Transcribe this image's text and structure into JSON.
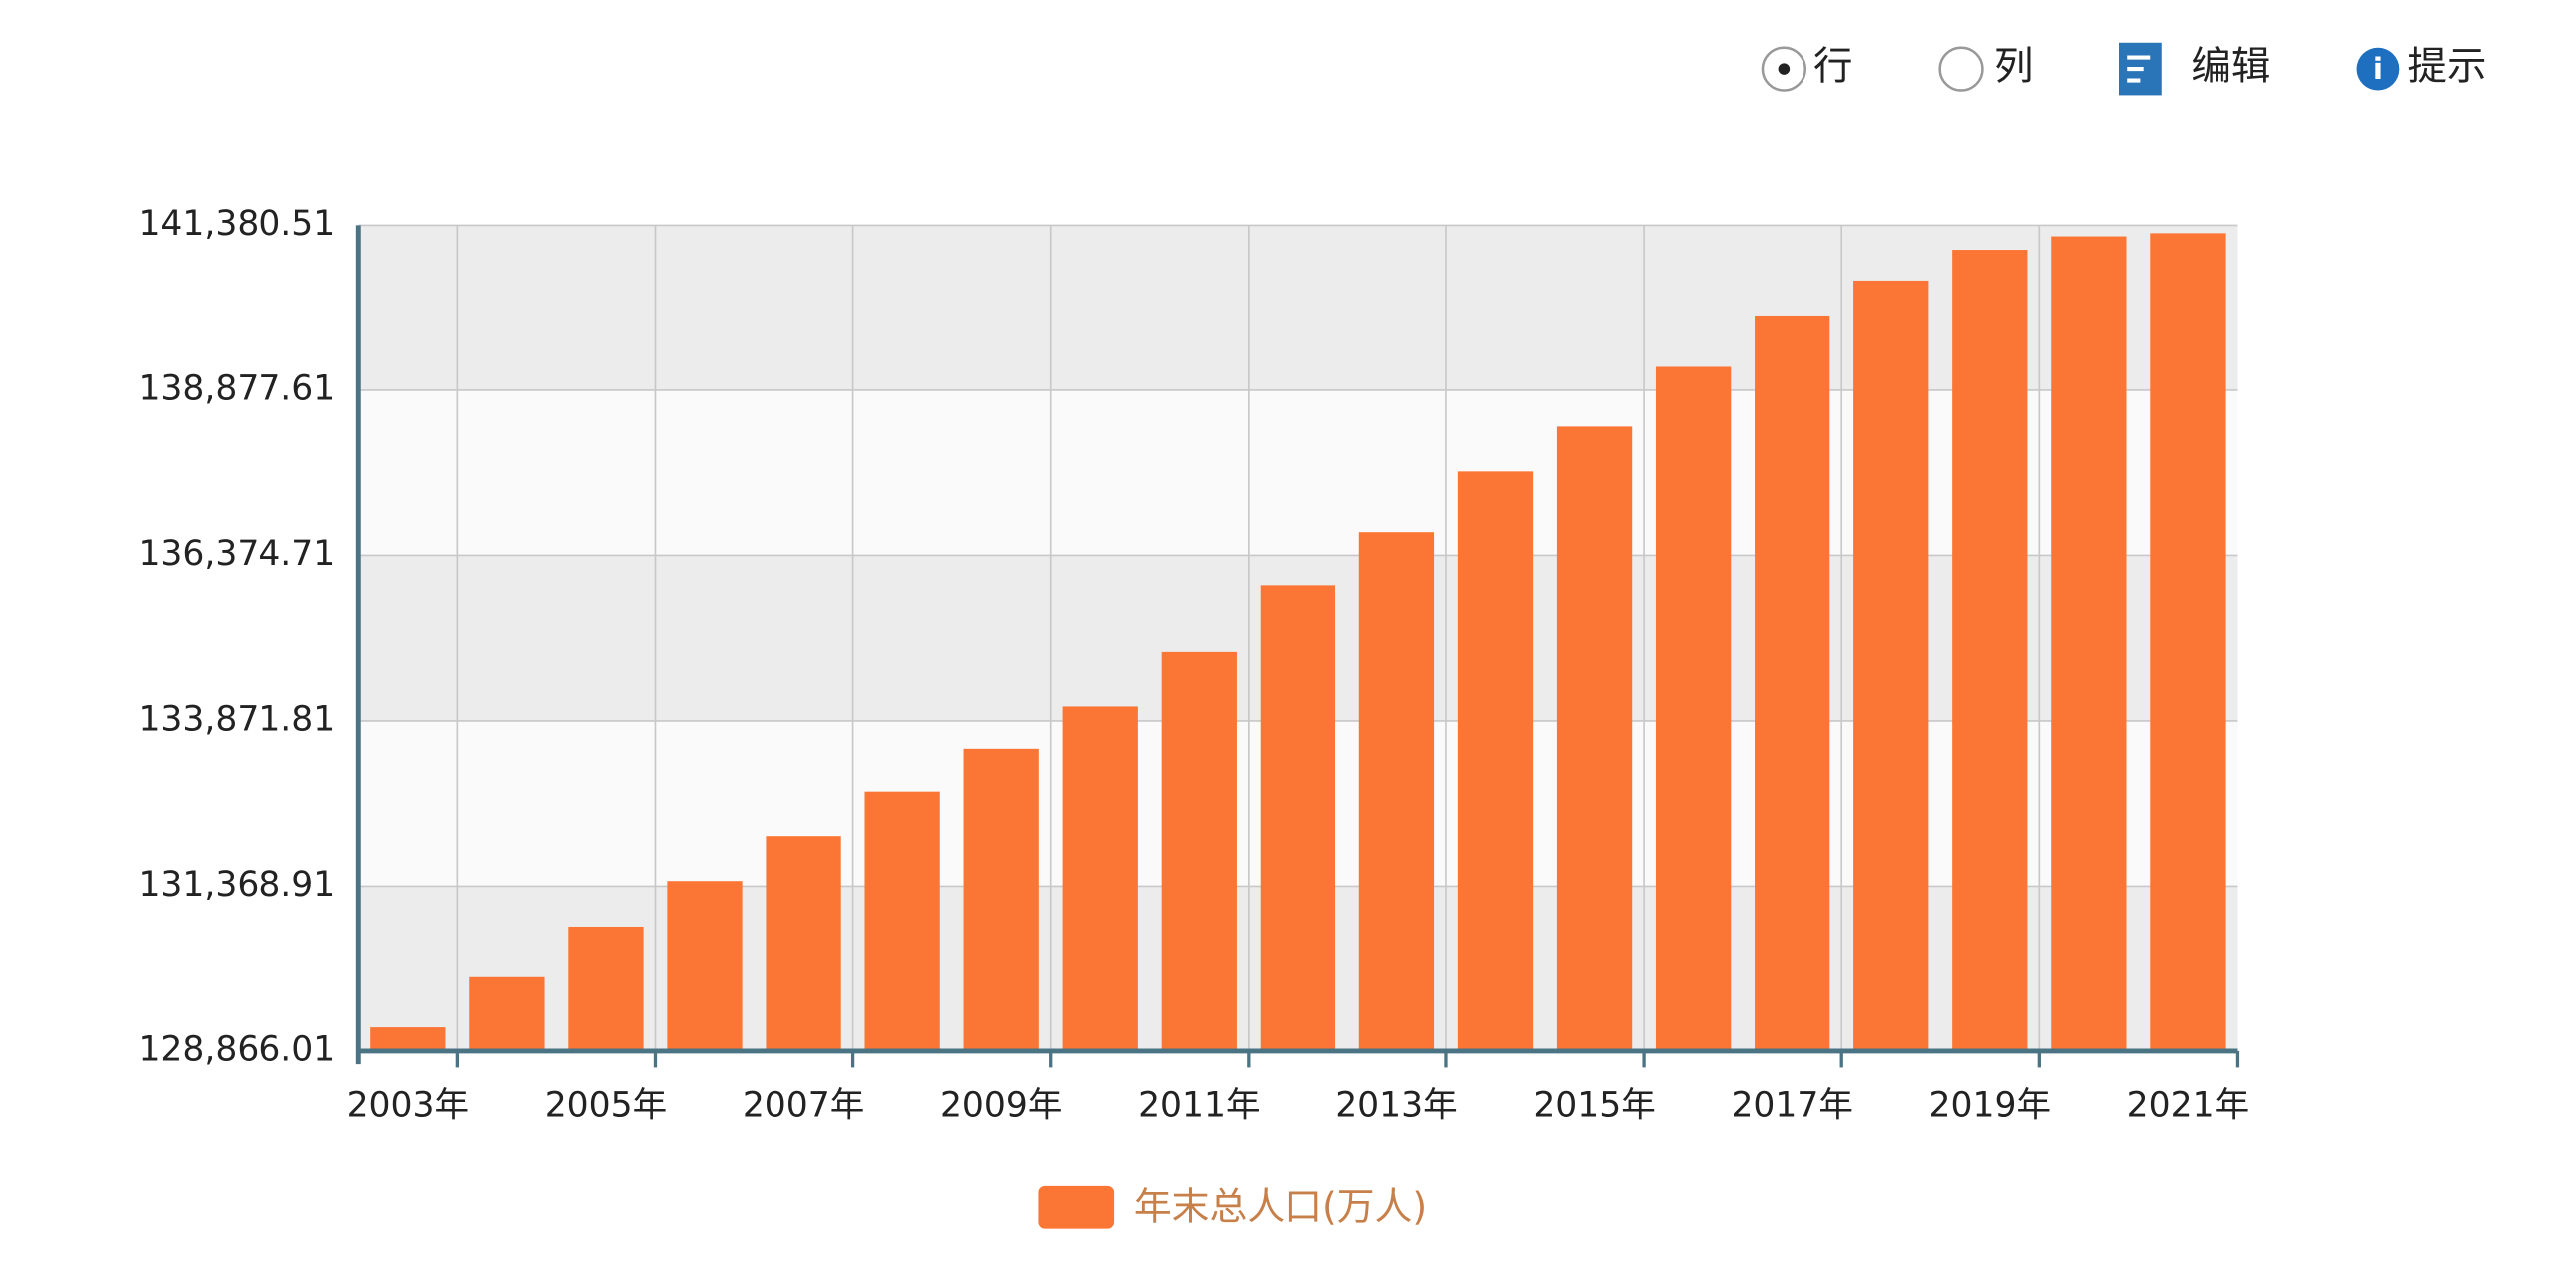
{
  "toolbar": {
    "options": [
      "行",
      "列"
    ],
    "actions": [
      "编辑",
      "提示"
    ]
  },
  "chart_data": {
    "type": "bar",
    "categories": [
      "2003年",
      null,
      "2005年",
      null,
      "2007年",
      null,
      "2009年",
      null,
      "2011年",
      null,
      "2013年",
      null,
      "2015年",
      null,
      "2017年",
      null,
      "2019年",
      null,
      "2021年"
    ],
    "series": [
      {
        "name": "年末总人口(万人)",
        "color": "#fb7634",
        "values": [
          129227,
          129988,
          130756,
          131448,
          132129,
          132802,
          133450,
          134091,
          134916,
          135922,
          136726,
          137646,
          138326,
          139232,
          140011,
          140541,
          141008,
          141212,
          141260
        ]
      }
    ],
    "ylim": [
      128866.01,
      141380.51
    ],
    "yticks": [
      {
        "value": 128866.01,
        "label": "128,866.01"
      },
      {
        "value": 131368.91,
        "label": "131,368.91"
      },
      {
        "value": 133871.81,
        "label": "133,871.81"
      },
      {
        "value": 136374.71,
        "label": "136,374.71"
      },
      {
        "value": 138877.61,
        "label": "138,877.61"
      },
      {
        "value": 141380.51,
        "label": "141,380.51"
      }
    ],
    "grid": true
  }
}
